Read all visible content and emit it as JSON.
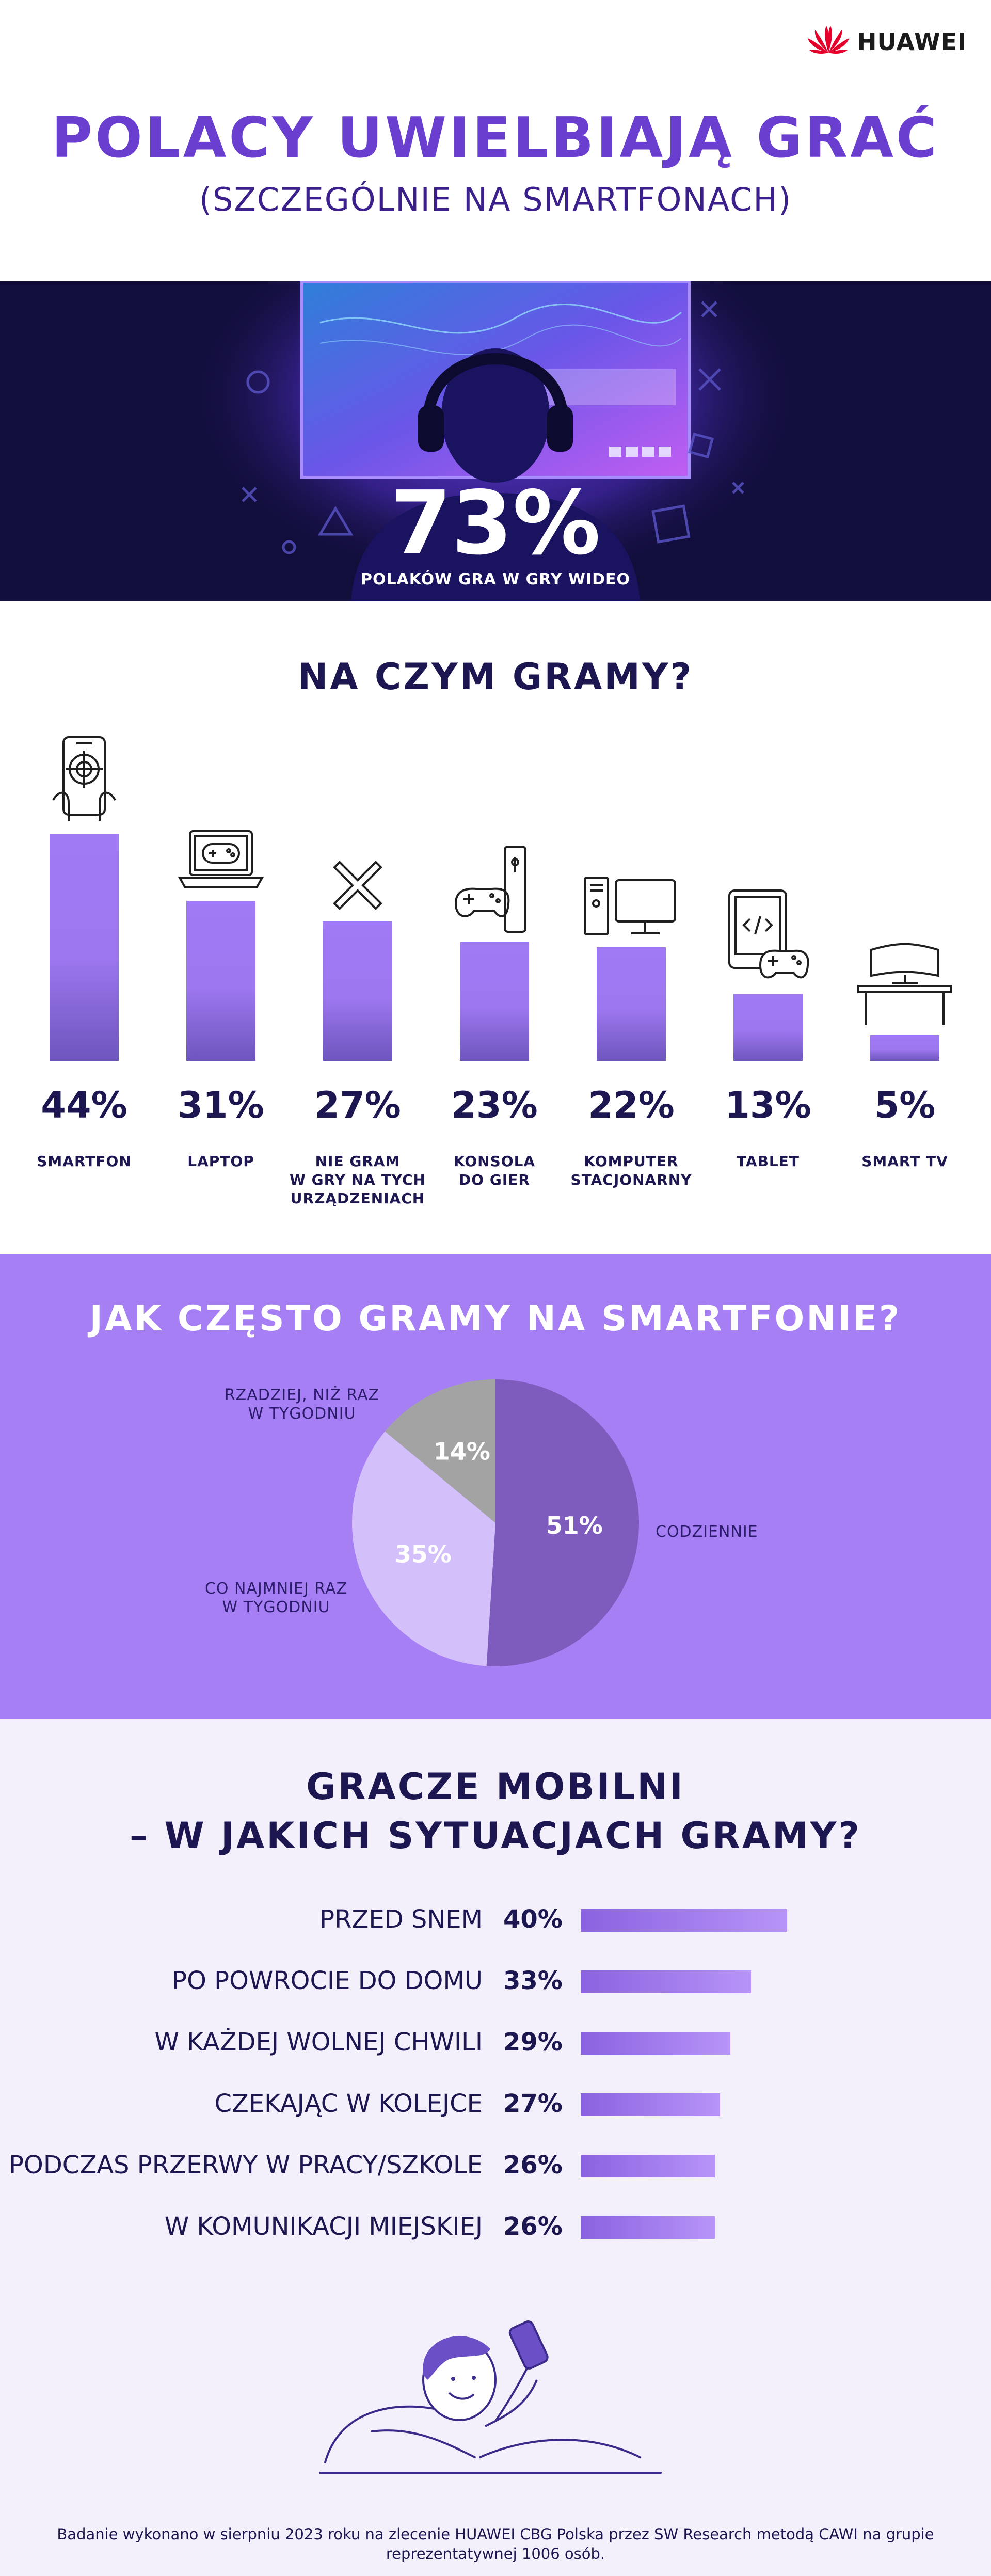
{
  "header": {
    "brand": "HUAWEI",
    "title": "POLACY UWIELBIAJĄ GRAĆ",
    "subtitle": "(SZCZEGÓLNIE NA SMARTFONACH)"
  },
  "hero": {
    "percent": "73%",
    "caption": "POLAKÓW GRA W GRY WIDEO"
  },
  "colors": {
    "accent": "#a77ff4",
    "dark": "#1c1750",
    "title": "#6a3fd0",
    "hero_bg": "#110e3b"
  },
  "chart_data": [
    {
      "type": "bar",
      "title": "NA CZYM GRAMY?",
      "categories": [
        "SMARTFON",
        "LAPTOP",
        "NIE GRAM\nW GRY NA TYCH\nURZĄDZENIACH",
        "KONSOLA\nDO GIER",
        "KOMPUTER\nSTACJONARNY",
        "TABLET",
        "SMART TV"
      ],
      "values": [
        44,
        31,
        27,
        23,
        22,
        13,
        5
      ],
      "value_labels": [
        "44%",
        "31%",
        "27%",
        "23%",
        "22%",
        "13%",
        "5%"
      ],
      "icons": [
        "smartphone-icon",
        "laptop-icon",
        "x-icon",
        "console-icon",
        "desktop-computer-icon",
        "tablet-icon",
        "smart-tv-icon"
      ],
      "ylim": [
        0,
        44
      ]
    },
    {
      "type": "pie",
      "title": "JAK CZĘSTO GRAMY NA SMARTFONIE?",
      "slices": [
        {
          "label": "CODZIENNIE",
          "value": 51,
          "value_label": "51%",
          "color": "#7d5cbd"
        },
        {
          "label": "CO NAJMNIEJ RAZ\nW TYGODNIU",
          "value": 35,
          "value_label": "35%",
          "color": "#d3bff9"
        },
        {
          "label": "RZADZIEJ, NIŻ RAZ\nW TYGODNIU",
          "value": 14,
          "value_label": "14%",
          "color": "#a3a3a3"
        }
      ]
    },
    {
      "type": "bar",
      "orientation": "horizontal",
      "title_line1": "GRACZE MOBILNI",
      "title_line2": "– W JAKICH SYTUACJACH GRAMY?",
      "categories": [
        "PRZED SNEM",
        "PO POWROCIE DO DOMU",
        "W KAŻDEJ WOLNEJ CHWILI",
        "CZEKAJĄC W KOLEJCE",
        "PODCZAS PRZERWY W PRACY/SZKOLE",
        "W KOMUNIKACJI MIEJSKIEJ"
      ],
      "values": [
        40,
        33,
        29,
        27,
        26,
        26
      ],
      "value_labels": [
        "40%",
        "33%",
        "29%",
        "27%",
        "26%",
        "26%"
      ],
      "xlim": [
        0,
        40
      ]
    }
  ],
  "footnote": "Badanie wykonano w sierpniu 2023 roku na zlecenie HUAWEI CBG Polska przez SW Research metodą CAWI na grupie\nreprezentatywnej 1006 osób."
}
